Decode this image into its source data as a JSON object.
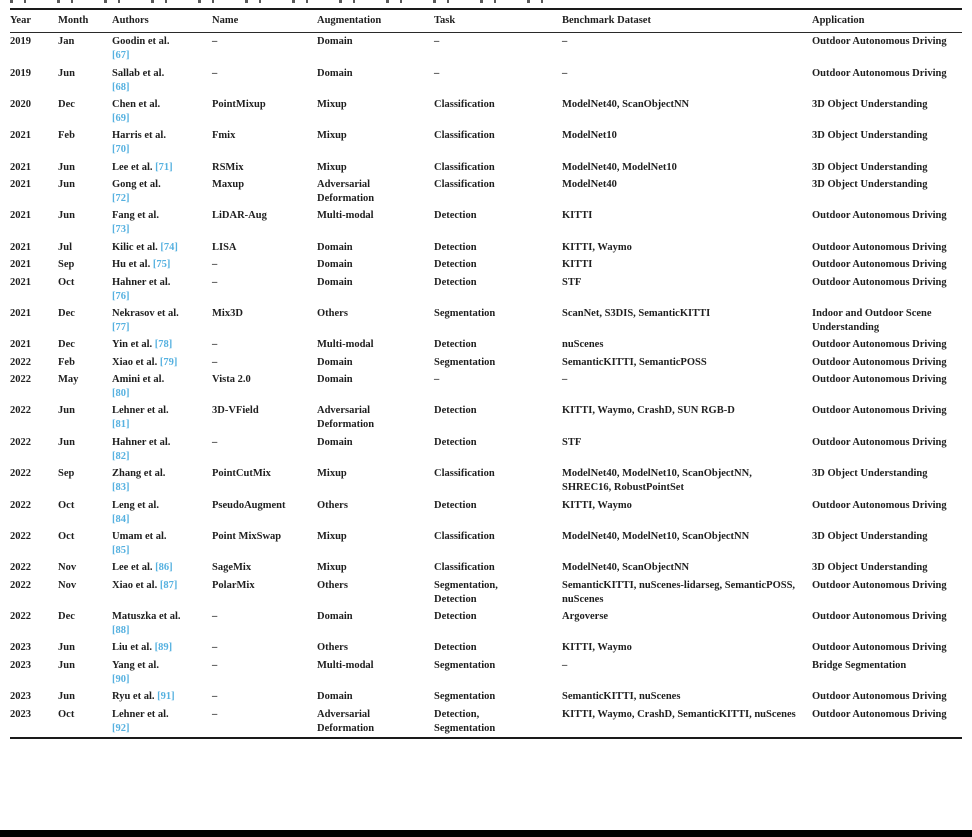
{
  "colors": {
    "citation_blue": "#56b1e0",
    "text": "#1f1f1f",
    "rule": "#1a1a1a"
  },
  "table": {
    "columns": [
      "Year",
      "Month",
      "Authors",
      "Name",
      "Augmentation",
      "Task",
      "Benchmark Dataset",
      "Application"
    ],
    "empty_marker": "–",
    "rows": [
      {
        "year": "2019",
        "month": "Jan",
        "authors": "Goodin et al.",
        "ref": "[67]",
        "ref_own_line": true,
        "name": "–",
        "augmentation": "Domain",
        "task": "–",
        "benchmark": "–",
        "application": "Outdoor Autonomous Driving"
      },
      {
        "year": "2019",
        "month": "Jun",
        "authors": "Sallab et al.",
        "ref": "[68]",
        "ref_own_line": true,
        "name": "–",
        "augmentation": "Domain",
        "task": "–",
        "benchmark": "–",
        "application": "Outdoor Autonomous Driving"
      },
      {
        "year": "2020",
        "month": "Dec",
        "authors": "Chen et al.",
        "ref": "[69]",
        "ref_own_line": true,
        "name": "PointMixup",
        "augmentation": "Mixup",
        "task": "Classification",
        "benchmark": "ModelNet40, ScanObjectNN",
        "application": "3D Object Understanding"
      },
      {
        "year": "2021",
        "month": "Feb",
        "authors": "Harris et al.",
        "ref": "[70]",
        "ref_own_line": true,
        "name": "Fmix",
        "augmentation": "Mixup",
        "task": "Classification",
        "benchmark": "ModelNet10",
        "application": "3D Object Understanding"
      },
      {
        "year": "2021",
        "month": "Jun",
        "authors": "Lee et al.",
        "ref": "[71]",
        "ref_own_line": false,
        "name": "RSMix",
        "augmentation": "Mixup",
        "task": "Classification",
        "benchmark": "ModelNet40, ModelNet10",
        "application": "3D Object Understanding"
      },
      {
        "year": "2021",
        "month": "Jun",
        "authors": "Gong et al.",
        "ref": "[72]",
        "ref_own_line": true,
        "name": "Maxup",
        "augmentation": "Adversarial Deformation",
        "task": "Classification",
        "benchmark": "ModelNet40",
        "application": "3D Object Understanding"
      },
      {
        "year": "2021",
        "month": "Jun",
        "authors": "Fang et al.",
        "ref": "[73]",
        "ref_own_line": true,
        "name": "LiDAR-Aug",
        "augmentation": "Multi-modal",
        "task": "Detection",
        "benchmark": "KITTI",
        "application": "Outdoor Autonomous Driving"
      },
      {
        "year": "2021",
        "month": "Jul",
        "authors": "Kilic et al.",
        "ref": "[74]",
        "ref_own_line": false,
        "name": "LISA",
        "augmentation": "Domain",
        "task": "Detection",
        "benchmark": "KITTI, Waymo",
        "application": "Outdoor Autonomous Driving"
      },
      {
        "year": "2021",
        "month": "Sep",
        "authors": "Hu et al.",
        "ref": "[75]",
        "ref_own_line": false,
        "name": "–",
        "augmentation": "Domain",
        "task": "Detection",
        "benchmark": "KITTI",
        "application": "Outdoor Autonomous Driving"
      },
      {
        "year": "2021",
        "month": "Oct",
        "authors": "Hahner et al.",
        "ref": "[76]",
        "ref_own_line": true,
        "name": "–",
        "augmentation": "Domain",
        "task": "Detection",
        "benchmark": "STF",
        "application": "Outdoor Autonomous Driving"
      },
      {
        "year": "2021",
        "month": "Dec",
        "authors": "Nekrasov et al.",
        "ref": "[77]",
        "ref_own_line": true,
        "name": "Mix3D",
        "augmentation": "Others",
        "task": "Segmentation",
        "benchmark": "ScanNet, S3DIS, SemanticKITTI",
        "application": "Indoor and Outdoor Scene Understanding"
      },
      {
        "year": "2021",
        "month": "Dec",
        "authors": "Yin et al.",
        "ref": "[78]",
        "ref_own_line": false,
        "name": "–",
        "augmentation": "Multi-modal",
        "task": "Detection",
        "benchmark": "nuScenes",
        "application": "Outdoor Autonomous Driving"
      },
      {
        "year": "2022",
        "month": "Feb",
        "authors": "Xiao et al.",
        "ref": "[79]",
        "ref_own_line": false,
        "name": "–",
        "augmentation": "Domain",
        "task": "Segmentation",
        "benchmark": "SemanticKITTI, SemanticPOSS",
        "application": "Outdoor Autonomous Driving"
      },
      {
        "year": "2022",
        "month": "May",
        "authors": "Amini et al.",
        "ref": "[80]",
        "ref_own_line": true,
        "name": "Vista 2.0",
        "augmentation": "Domain",
        "task": "–",
        "benchmark": "–",
        "application": "Outdoor Autonomous Driving"
      },
      {
        "year": "2022",
        "month": "Jun",
        "authors": "Lehner et al.",
        "ref": "[81]",
        "ref_own_line": true,
        "name": "3D-VField",
        "augmentation": "Adversarial Deformation",
        "task": "Detection",
        "benchmark": "KITTI, Waymo, CrashD, SUN RGB-D",
        "application": "Outdoor Autonomous Driving"
      },
      {
        "year": "2022",
        "month": "Jun",
        "authors": "Hahner et al.",
        "ref": "[82]",
        "ref_own_line": true,
        "name": "–",
        "augmentation": "Domain",
        "task": "Detection",
        "benchmark": "STF",
        "application": "Outdoor Autonomous Driving"
      },
      {
        "year": "2022",
        "month": "Sep",
        "authors": "Zhang et al.",
        "ref": "[83]",
        "ref_own_line": true,
        "name": "PointCutMix",
        "augmentation": "Mixup",
        "task": "Classification",
        "benchmark": "ModelNet40, ModelNet10, ScanObjectNN, SHREC16, RobustPointSet",
        "application": "3D Object Understanding"
      },
      {
        "year": "2022",
        "month": "Oct",
        "authors": "Leng et al.",
        "ref": "[84]",
        "ref_own_line": true,
        "name": "PseudoAugment",
        "augmentation": "Others",
        "task": "Detection",
        "benchmark": "KITTI, Waymo",
        "application": "Outdoor Autonomous Driving"
      },
      {
        "year": "2022",
        "month": "Oct",
        "authors": "Umam et al.",
        "ref": "[85]",
        "ref_own_line": true,
        "name": "Point MixSwap",
        "augmentation": "Mixup",
        "task": "Classification",
        "benchmark": "ModelNet40, ModelNet10, ScanObjectNN",
        "application": "3D Object Understanding"
      },
      {
        "year": "2022",
        "month": "Nov",
        "authors": "Lee et al.",
        "ref": "[86]",
        "ref_own_line": false,
        "name": "SageMix",
        "augmentation": "Mixup",
        "task": "Classification",
        "benchmark": "ModelNet40, ScanObjectNN",
        "application": "3D Object Understanding"
      },
      {
        "year": "2022",
        "month": "Nov",
        "authors": "Xiao et al.",
        "ref": "[87]",
        "ref_own_line": false,
        "name": "PolarMix",
        "augmentation": "Others",
        "task": "Segmentation,\nDetection",
        "benchmark": "SemanticKITTI, nuScenes-lidarseg, SemanticPOSS, nuScenes",
        "application": "Outdoor Autonomous Driving"
      },
      {
        "year": "2022",
        "month": "Dec",
        "authors": "Matuszka et al.",
        "ref": "[88]",
        "ref_own_line": true,
        "name": "–",
        "augmentation": "Domain",
        "task": "Detection",
        "benchmark": "Argoverse",
        "application": "Outdoor Autonomous Driving"
      },
      {
        "year": "2023",
        "month": "Jun",
        "authors": "Liu et al.",
        "ref": "[89]",
        "ref_own_line": false,
        "name": "–",
        "augmentation": "Others",
        "task": "Detection",
        "benchmark": "KITTI, Waymo",
        "application": "Outdoor Autonomous Driving"
      },
      {
        "year": "2023",
        "month": "Jun",
        "authors": "Yang et al.",
        "ref": "[90]",
        "ref_own_line": true,
        "name": "–",
        "augmentation": "Multi-modal",
        "task": "Segmentation",
        "benchmark": "–",
        "application": "Bridge Segmentation"
      },
      {
        "year": "2023",
        "month": "Jun",
        "authors": "Ryu et al.",
        "ref": "[91]",
        "ref_own_line": false,
        "name": "–",
        "augmentation": "Domain",
        "task": "Segmentation",
        "benchmark": "SemanticKITTI, nuScenes",
        "application": "Outdoor Autonomous Driving"
      },
      {
        "year": "2023",
        "month": "Oct",
        "authors": "Lehner et al.",
        "ref": "[92]",
        "ref_own_line": true,
        "name": "–",
        "augmentation": "Adversarial Deformation",
        "task": "Detection,\nSegmentation",
        "benchmark": "KITTI, Waymo, CrashD, SemanticKITTI, nuScenes",
        "application": "Outdoor Autonomous Driving"
      }
    ]
  }
}
